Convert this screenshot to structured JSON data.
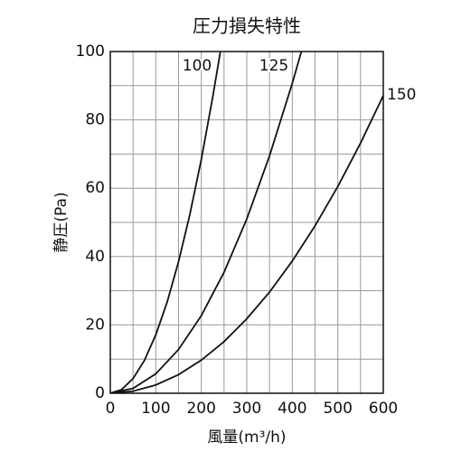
{
  "chart_data": {
    "type": "line",
    "title": "圧力損失特性",
    "x_label": "風量(m³/h)",
    "y_label": "静圧(Pa)",
    "series": [
      {
        "name": "100",
        "color": "#111111",
        "x": [
          0,
          25,
          50,
          75,
          100,
          125,
          150,
          175,
          200,
          225,
          242
        ],
        "values": [
          0,
          1.07,
          4.28,
          9.6,
          17.1,
          26.7,
          38.5,
          52.4,
          68.4,
          86.6,
          100
        ]
      },
      {
        "name": "125",
        "color": "#111111",
        "x": [
          0,
          50,
          100,
          150,
          200,
          250,
          300,
          350,
          400,
          420
        ],
        "values": [
          0,
          1.42,
          5.67,
          12.8,
          22.7,
          35.4,
          51.0,
          69.5,
          90.7,
          100
        ]
      },
      {
        "name": "150",
        "color": "#111111",
        "x": [
          0,
          50,
          100,
          150,
          200,
          250,
          300,
          350,
          400,
          450,
          500,
          550,
          600
        ],
        "values": [
          0,
          0.6,
          2.42,
          5.45,
          9.68,
          15.1,
          21.8,
          29.6,
          38.7,
          49.0,
          60.5,
          73.2,
          87.1
        ]
      }
    ],
    "xlim": [
      0,
      600
    ],
    "xticks": [
      0,
      100,
      200,
      300,
      400,
      500,
      600
    ],
    "ylim": [
      0,
      100
    ],
    "yticks": [
      0,
      20,
      40,
      60,
      80,
      100
    ],
    "minor_xticks": [
      50,
      150,
      250,
      350,
      450,
      550
    ],
    "minor_yticks": [
      10,
      30,
      50,
      70,
      90
    ],
    "grid": true
  }
}
